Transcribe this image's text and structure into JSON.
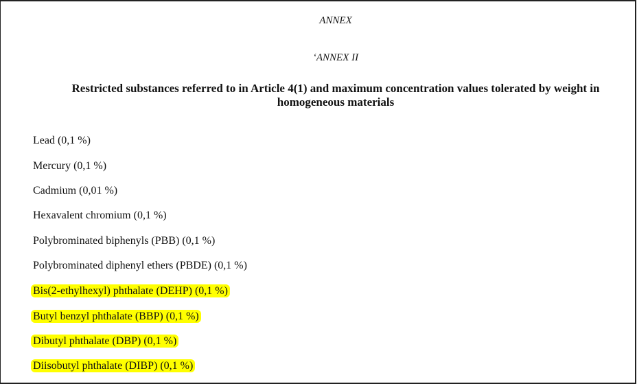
{
  "annex_label": "ANNEX",
  "annex_ii_label": "‘ANNEX II",
  "title": "Restricted substances referred to in Article 4(1) and maximum concentration values tolerated by weight in homogeneous materials",
  "highlight_color": "#ffff00",
  "items": [
    {
      "text": "Lead (0,1 %)",
      "highlighted": false
    },
    {
      "text": "Mercury (0,1 %)",
      "highlighted": false
    },
    {
      "text": "Cadmium (0,01 %)",
      "highlighted": false
    },
    {
      "text": "Hexavalent chromium (0,1 %)",
      "highlighted": false
    },
    {
      "text": "Polybrominated biphenyls (PBB) (0,1 %)",
      "highlighted": false
    },
    {
      "text": "Polybrominated diphenyl ethers (PBDE) (0,1 %)",
      "highlighted": false
    },
    {
      "text": "Bis(2-ethylhexyl) phthalate (DEHP) (0,1 %)",
      "highlighted": true
    },
    {
      "text": "Butyl benzyl phthalate (BBP) (0,1 %)",
      "highlighted": true
    },
    {
      "text": "Dibutyl phthalate (DBP) (0,1 %)",
      "highlighted": true
    },
    {
      "text": "Diisobutyl phthalate (DIBP) (0,1 %)",
      "highlighted": true
    }
  ]
}
